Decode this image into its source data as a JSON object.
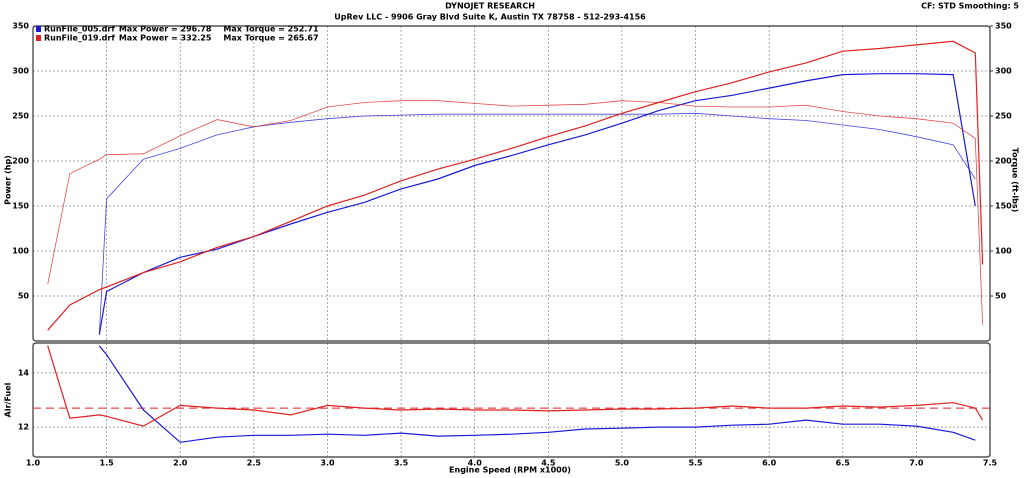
{
  "header": {
    "title": "DYNOJET RESEARCH",
    "subtitle": "UpRev LLC - 9906 Gray Blvd Suite K, Austin TX 78758 - 512-293-4156",
    "settings": "CF: STD  Smoothing: 5"
  },
  "chart_data": [
    {
      "type": "line",
      "ylabel": "Power (hp)",
      "y2label": "Torque (ft-lbs)",
      "x": [
        1.1,
        1.25,
        1.45,
        1.5,
        1.75,
        2.0,
        2.25,
        2.5,
        2.75,
        3.0,
        3.25,
        3.5,
        3.75,
        4.0,
        4.25,
        4.5,
        4.75,
        5.0,
        5.25,
        5.5,
        5.75,
        6.0,
        6.25,
        6.5,
        6.75,
        7.0,
        7.25,
        7.4,
        7.45
      ],
      "xlim": [
        1.0,
        7.5
      ],
      "ylim": [
        0,
        350
      ],
      "yticks": [
        50,
        100,
        150,
        200,
        250,
        300,
        350
      ],
      "y2lim": [
        0,
        350
      ],
      "y2ticks": [
        50,
        100,
        150,
        200,
        250,
        300,
        350
      ],
      "grid": true,
      "series": [
        {
          "name": "RunFile_005.drf",
          "color": "#1a1ad6",
          "legend_notes": [
            "Max Power = 296.78",
            "Max Torque = 252.71"
          ],
          "values": [
            null,
            null,
            7,
            55,
            76,
            93,
            102,
            116,
            130,
            143,
            154,
            169,
            180,
            195,
            206,
            218,
            229,
            242,
            256,
            267,
            273,
            281,
            289,
            296,
            297,
            297,
            296,
            150,
            null
          ]
        },
        {
          "color": "#1a1ad6",
          "axis": "y2",
          "values": [
            null,
            null,
            7,
            158,
            202,
            214,
            229,
            238,
            243,
            247,
            250,
            251,
            252,
            252,
            252,
            252,
            252,
            252,
            252,
            253,
            250,
            247,
            245,
            240,
            235,
            227,
            218,
            180,
            null
          ]
        },
        {
          "name": "RunFile_019.drf",
          "color": "#e02020",
          "legend_notes": [
            "Max Power = 332.25",
            "Max Torque = 265.67"
          ],
          "values": [
            12,
            40,
            57,
            60,
            76,
            88,
            104,
            116,
            133,
            150,
            162,
            178,
            191,
            202,
            214,
            227,
            239,
            253,
            265,
            277,
            287,
            299,
            309,
            322,
            325,
            329,
            333,
            320,
            85
          ]
        },
        {
          "color": "#e02020",
          "axis": "y2",
          "values": [
            63,
            186,
            202,
            207,
            208,
            228,
            246,
            238,
            245,
            260,
            265,
            267,
            267,
            264,
            261,
            262,
            263,
            267,
            265,
            261,
            260,
            260,
            262,
            255,
            250,
            247,
            242,
            225,
            18
          ]
        }
      ]
    },
    {
      "type": "line",
      "ylabel": "Air/Fuel",
      "xlabel": "Engine Speed (RPM x1000)",
      "x": [
        1.1,
        1.25,
        1.45,
        1.5,
        1.75,
        2.0,
        2.25,
        2.5,
        2.75,
        3.0,
        3.25,
        3.5,
        3.75,
        4.0,
        4.25,
        4.5,
        4.75,
        5.0,
        5.25,
        5.5,
        5.75,
        6.0,
        6.25,
        6.5,
        6.75,
        7.0,
        7.25,
        7.4,
        7.45
      ],
      "xlim": [
        1.0,
        7.5
      ],
      "xticks": [
        {
          "value": 1.0,
          "label": "1.0"
        },
        1.5,
        {
          "value": 2.0,
          "label": "2.0"
        },
        2.5,
        {
          "value": 3.0,
          "label": "3.0"
        },
        3.5,
        {
          "value": 4.0,
          "label": "4.0"
        },
        4.5,
        {
          "value": 5.0,
          "label": "5.0"
        },
        5.5,
        {
          "value": 6.0,
          "label": "6.0"
        },
        6.5,
        {
          "value": 7.0,
          "label": "7.0"
        },
        7.5
      ],
      "ylim": [
        10.9,
        15.1
      ],
      "yticks": [
        12,
        14
      ],
      "grid": true,
      "target_line": {
        "value": 12.7,
        "color": "#e02020"
      },
      "series": [
        {
          "color": "#1a1ad6",
          "values": [
            null,
            null,
            15.0,
            14.67,
            12.63,
            11.44,
            11.63,
            11.7,
            11.7,
            11.74,
            11.7,
            11.78,
            11.67,
            11.7,
            11.74,
            11.81,
            11.93,
            11.96,
            12.0,
            12.0,
            12.07,
            12.11,
            12.26,
            12.11,
            12.11,
            12.04,
            11.81,
            11.52,
            null
          ]
        },
        {
          "color": "#e02020",
          "values": [
            15.0,
            12.33,
            12.45,
            12.4,
            12.04,
            12.8,
            12.7,
            12.63,
            12.45,
            12.8,
            12.7,
            12.63,
            12.67,
            12.63,
            12.63,
            12.6,
            12.63,
            12.67,
            12.67,
            12.7,
            12.78,
            12.7,
            12.7,
            12.78,
            12.74,
            12.8,
            12.9,
            12.7,
            12.26
          ]
        }
      ]
    }
  ]
}
